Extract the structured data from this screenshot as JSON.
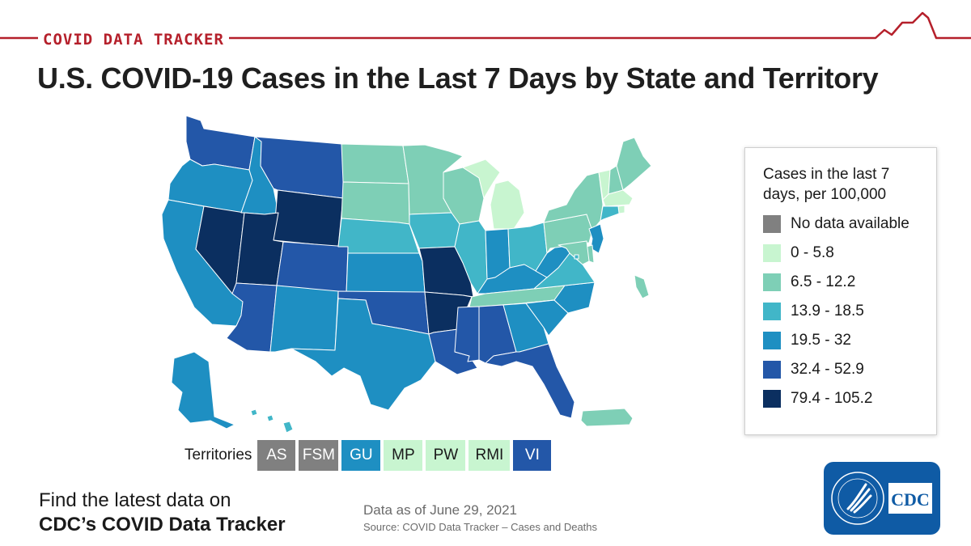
{
  "header": {
    "brand": "COVID DATA TRACKER",
    "title": "U.S. COVID-19 Cases in the Last 7 Days by State and Territory"
  },
  "colors": {
    "brand_red": "#b5202b",
    "no_data": "#808080",
    "bin1": "#c8f5d0",
    "bin2": "#7ecfb6",
    "bin3": "#41b6c8",
    "bin4": "#1e8fc2",
    "bin5": "#2357a8",
    "bin6": "#0b2f60"
  },
  "legend": {
    "title": "Cases in the last 7 days, per 100,000",
    "items": [
      {
        "label": "No data available",
        "color_key": "no_data"
      },
      {
        "label": "0 - 5.8",
        "color_key": "bin1"
      },
      {
        "label": "6.5 - 12.2",
        "color_key": "bin2"
      },
      {
        "label": "13.9 - 18.5",
        "color_key": "bin3"
      },
      {
        "label": "19.5 - 32",
        "color_key": "bin4"
      },
      {
        "label": "32.4 - 52.9",
        "color_key": "bin5"
      },
      {
        "label": "79.4 - 105.2",
        "color_key": "bin6"
      }
    ]
  },
  "territories": {
    "label": "Territories",
    "items": [
      {
        "code": "AS",
        "bin": "no_data"
      },
      {
        "code": "FSM",
        "bin": "no_data"
      },
      {
        "code": "GU",
        "bin": "bin4"
      },
      {
        "code": "MP",
        "bin": "bin1"
      },
      {
        "code": "PW",
        "bin": "bin1"
      },
      {
        "code": "RMI",
        "bin": "bin1"
      },
      {
        "code": "VI",
        "bin": "bin5"
      }
    ]
  },
  "states": {
    "WA": "bin5",
    "OR": "bin4",
    "CA": "bin4",
    "NV": "bin6",
    "ID": "bin4",
    "MT": "bin5",
    "WY": "bin6",
    "UT": "bin6",
    "AZ": "bin5",
    "CO": "bin5",
    "NM": "bin4",
    "ND": "bin2",
    "SD": "bin2",
    "NE": "bin3",
    "KS": "bin4",
    "OK": "bin5",
    "TX": "bin4",
    "MN": "bin2",
    "IA": "bin3",
    "MO": "bin6",
    "AR": "bin6",
    "LA": "bin5",
    "WI": "bin2",
    "IL": "bin3",
    "MI": "bin1",
    "IN": "bin4",
    "OH": "bin3",
    "KY": "bin4",
    "TN": "bin2",
    "MS": "bin5",
    "AL": "bin5",
    "GA": "bin4",
    "FL": "bin5",
    "SC": "bin4",
    "NC": "bin4",
    "VA": "bin3",
    "WV": "bin4",
    "PA": "bin2",
    "NY": "bin2",
    "VT": "bin1",
    "NH": "bin2",
    "ME": "bin2",
    "MA": "bin1",
    "RI": "bin1",
    "CT": "bin3",
    "NJ": "bin4",
    "DE": "bin2",
    "MD": "bin2",
    "DC": "bin3",
    "AK": "bin4",
    "HI": "bin3",
    "PR": "bin2",
    "MH_island": "bin2"
  },
  "footer": {
    "cta_line1": "Find the latest data on",
    "cta_line2": "CDC’s COVID Data Tracker",
    "as_of": "Data as of June 29, 2021",
    "source": "Source: COVID Data Tracker – Cases and Deaths",
    "logo_text": "CDC"
  }
}
